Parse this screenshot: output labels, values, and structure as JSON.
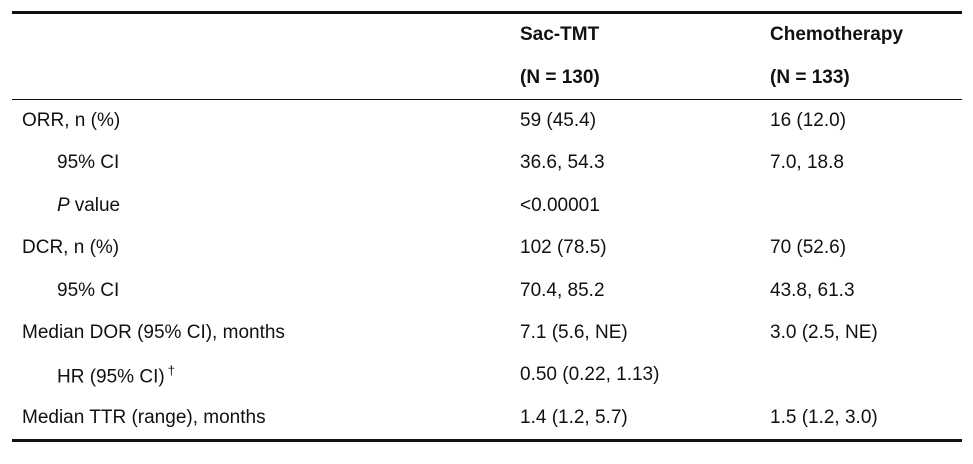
{
  "table": {
    "header": [
      [
        "Sac-TMT",
        "(N = 130)"
      ],
      [
        "Chemotherapy",
        "(N = 133)"
      ]
    ],
    "rows": [
      [
        "ORR, n (%)",
        "59 (45.4)",
        "16 (12.0)"
      ],
      [
        "95% CI",
        "36.6, 54.3",
        "7.0, 18.8"
      ],
      [
        [
          "P",
          "value"
        ],
        "<0.00001"
      ],
      [
        "DCR, n (%)",
        "102 (78.5)",
        "70 (52.6)"
      ],
      [
        "95% CI",
        "70.4, 85.2",
        "43.8, 61.3"
      ],
      [
        "Median DOR (95% CI), months",
        "7.1 (5.6, NE)",
        "3.0 (2.5, NE)"
      ],
      [
        [
          "HR (95% CI)",
          "†"
        ],
        "0.50 (0.22, 1.13)"
      ],
      [
        "Median TTR (range), months",
        "1.4 (1.2, 5.7)",
        "1.5 (1.2, 3.0)"
      ]
    ]
  }
}
